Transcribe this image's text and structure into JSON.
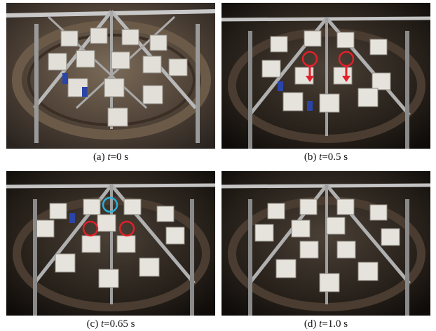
{
  "figure": {
    "panels": [
      {
        "id": "a",
        "label": "(a) ",
        "var": "t",
        "value": "=0 s",
        "tone": "bright",
        "markers": []
      },
      {
        "id": "b",
        "label": "(b) ",
        "var": "t",
        "value": "=0.5 s",
        "tone": "dark",
        "markers": [
          {
            "color": "#e0202a",
            "arrow": true
          },
          {
            "color": "#e0202a",
            "arrow": true
          }
        ]
      },
      {
        "id": "c",
        "label": "(c) ",
        "var": "t",
        "value": "=0.65 s",
        "tone": "dark",
        "markers": [
          {
            "color": "#2ab0d8",
            "arrow": false
          },
          {
            "color": "#e0202a",
            "arrow": false
          },
          {
            "color": "#e0202a",
            "arrow": false
          }
        ]
      },
      {
        "id": "d",
        "label": "(d) ",
        "var": "t",
        "value": "=1.0 s",
        "tone": "dark",
        "markers": []
      }
    ],
    "colors": {
      "marker_red": "#e0202a",
      "marker_cyan": "#2ab0d8",
      "frame": "#9a9a9a",
      "block": "#d9d6cf"
    }
  }
}
